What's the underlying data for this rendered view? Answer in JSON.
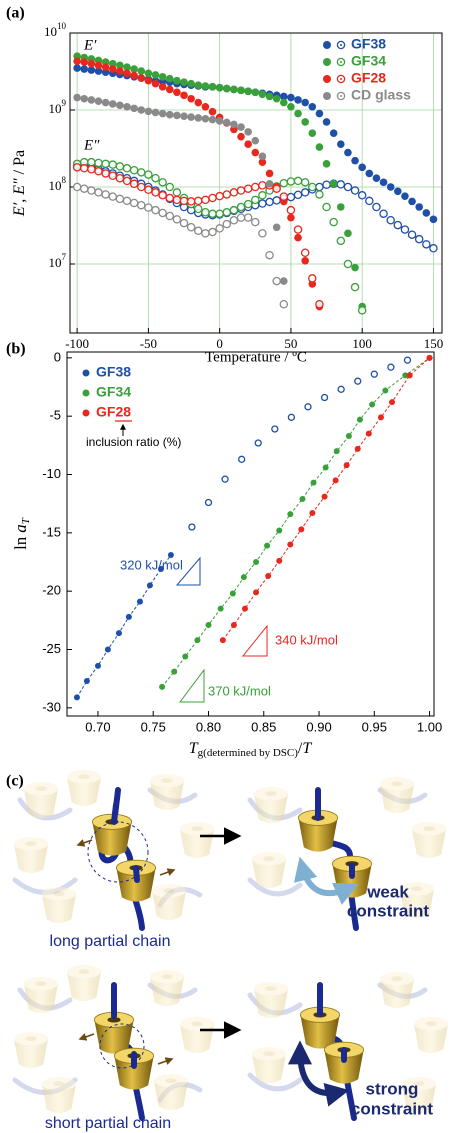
{
  "chart_data": [
    {
      "type": "scatter",
      "panel_label": "(a)",
      "yscale": "log",
      "grid": true,
      "legend": "upper right",
      "x_label": "Temperature / ºC",
      "y_label": [
        "E′, E″",
        "/ Pa"
      ],
      "annotations": [
        "E′",
        "E″"
      ],
      "xlim": [
        -105,
        156
      ],
      "xticks": [
        -100,
        -50,
        0,
        50,
        100,
        150
      ],
      "ylim": [
        1270000,
        10000000000
      ],
      "yticks": [
        {
          "value": 10000000,
          "label": "10",
          "exponent": "7"
        },
        {
          "value": 100000000,
          "label": "10",
          "exponent": "8"
        },
        {
          "value": 1000000000,
          "label": "10",
          "exponent": "9"
        },
        {
          "value": 10000000000,
          "label": "10",
          "exponent": "10"
        }
      ],
      "series": [
        {
          "name": "GF38",
          "color": "#1f4fa8",
          "x": [
            -100,
            -95,
            -90,
            -85,
            -80,
            -75,
            -70,
            -65,
            -60,
            -55,
            -50,
            -45,
            -40,
            -35,
            -30,
            -25,
            -20,
            -15,
            -10,
            -5,
            0,
            5,
            10,
            15,
            20,
            25,
            30,
            35,
            40,
            45,
            50,
            55,
            60,
            65,
            70,
            75,
            80,
            85,
            90,
            95,
            100,
            105,
            110,
            115,
            120,
            125,
            130,
            135,
            140,
            145,
            150
          ],
          "storage": [
            3500000000.0,
            3400000000.0,
            3300000000.0,
            3200000000.0,
            3100000000.0,
            3000000000.0,
            2900000000.0,
            2800000000.0,
            2700000000.0,
            2600000000.0,
            2500000000.0,
            2400000000.0,
            2350000000.0,
            2300000000.0,
            2200000000.0,
            2150000000.0,
            2100000000.0,
            2050000000.0,
            2000000000.0,
            2000000000.0,
            1950000000.0,
            1900000000.0,
            1850000000.0,
            1800000000.0,
            1750000000.0,
            1700000000.0,
            1650000000.0,
            1600000000.0,
            1550000000.0,
            1500000000.0,
            1450000000.0,
            1350000000.0,
            1250000000.0,
            1100000000.0,
            900000000.0,
            700000000.0,
            500000000.0,
            360000000.0,
            280000000.0,
            220000000.0,
            180000000.0,
            150000000.0,
            130000000.0,
            115000000.0,
            100000000.0,
            88000000.0,
            76000000.0,
            65000000.0,
            55000000.0,
            46000000.0,
            38000000.0
          ],
          "loss": [
            190000000.0,
            185000000.0,
            180000000.0,
            170000000.0,
            160000000.0,
            150000000.0,
            140000000.0,
            130000000.0,
            120000000.0,
            110000000.0,
            100000000.0,
            90000000.0,
            80000000.0,
            70000000.0,
            62000000.0,
            55000000.0,
            50000000.0,
            46000000.0,
            44000000.0,
            43000000.0,
            44000000.0,
            46000000.0,
            49000000.0,
            52000000.0,
            55000000.0,
            58000000.0,
            61000000.0,
            64000000.0,
            67000000.0,
            70000000.0,
            74000000.0,
            79000000.0,
            85000000.0,
            93000000.0,
            100000000.0,
            107000000.0,
            110000000.0,
            108000000.0,
            100000000.0,
            90000000.0,
            78000000.0,
            66000000.0,
            55000000.0,
            45000000.0,
            37000000.0,
            32000000.0,
            28000000.0,
            24000000.0,
            21000000.0,
            18000000.0,
            16000000.0
          ]
        },
        {
          "name": "GF34",
          "color": "#3aa03a",
          "x": [
            -100,
            -95,
            -90,
            -85,
            -80,
            -75,
            -70,
            -65,
            -60,
            -55,
            -50,
            -45,
            -40,
            -35,
            -30,
            -25,
            -20,
            -15,
            -10,
            -5,
            0,
            5,
            10,
            15,
            20,
            25,
            30,
            35,
            40,
            45,
            50,
            55,
            60,
            65,
            70,
            75,
            80,
            85,
            90,
            95,
            100
          ],
          "storage": [
            5000000000.0,
            4800000000.0,
            4600000000.0,
            4400000000.0,
            4200000000.0,
            4000000000.0,
            3800000000.0,
            3600000000.0,
            3400000000.0,
            3200000000.0,
            3000000000.0,
            2850000000.0,
            2700000000.0,
            2550000000.0,
            2400000000.0,
            2300000000.0,
            2200000000.0,
            2100000000.0,
            2050000000.0,
            2000000000.0,
            1950000000.0,
            1900000000.0,
            1850000000.0,
            1800000000.0,
            1750000000.0,
            1700000000.0,
            1600000000.0,
            1500000000.0,
            1400000000.0,
            1250000000.0,
            1100000000.0,
            900000000.0,
            700000000.0,
            500000000.0,
            330000000.0,
            200000000.0,
            110000000.0,
            55000000.0,
            25000000.0,
            9000000.0,
            2800000.0
          ],
          "loss": [
            200000000.0,
            210000000.0,
            210000000.0,
            205000000.0,
            200000000.0,
            195000000.0,
            185000000.0,
            175000000.0,
            165000000.0,
            155000000.0,
            145000000.0,
            130000000.0,
            115000000.0,
            100000000.0,
            85000000.0,
            72000000.0,
            60000000.0,
            52000000.0,
            47000000.0,
            45000000.0,
            45000000.0,
            47000000.0,
            50000000.0,
            55000000.0,
            60000000.0,
            68000000.0,
            78000000.0,
            90000000.0,
            102000000.0,
            112000000.0,
            118000000.0,
            120000000.0,
            115000000.0,
            100000000.0,
            80000000.0,
            55000000.0,
            35000000.0,
            20000000.0,
            10000000.0,
            5000000.0,
            2500000.0
          ]
        },
        {
          "name": "GF28",
          "color": "#e8281e",
          "x": [
            -100,
            -95,
            -90,
            -85,
            -80,
            -75,
            -70,
            -65,
            -60,
            -55,
            -50,
            -45,
            -40,
            -35,
            -30,
            -25,
            -20,
            -15,
            -10,
            -5,
            0,
            5,
            10,
            15,
            20,
            25,
            30,
            35,
            40,
            45,
            50,
            55,
            60,
            65,
            70
          ],
          "storage": [
            4300000000.0,
            4200000000.0,
            4000000000.0,
            3800000000.0,
            3600000000.0,
            3400000000.0,
            3200000000.0,
            3000000000.0,
            2800000000.0,
            2600000000.0,
            2400000000.0,
            2200000000.0,
            2000000000.0,
            1850000000.0,
            1700000000.0,
            1550000000.0,
            1400000000.0,
            1250000000.0,
            1100000000.0,
            950000000.0,
            800000000.0,
            680000000.0,
            560000000.0,
            450000000.0,
            360000000.0,
            280000000.0,
            210000000.0,
            150000000.0,
            100000000.0,
            65000000.0,
            40000000.0,
            22000000.0,
            11000000.0,
            5500000.0,
            2800000.0
          ],
          "loss": [
            180000000.0,
            175000000.0,
            170000000.0,
            160000000.0,
            150000000.0,
            140000000.0,
            130000000.0,
            120000000.0,
            110000000.0,
            100000000.0,
            92000000.0,
            85000000.0,
            78000000.0,
            72000000.0,
            68000000.0,
            66000000.0,
            65000000.0,
            66000000.0,
            68000000.0,
            72000000.0,
            76000000.0,
            80000000.0,
            85000000.0,
            90000000.0,
            95000000.0,
            100000000.0,
            105000000.0,
            105000000.0,
            95000000.0,
            75000000.0,
            50000000.0,
            28000000.0,
            14000000.0,
            6500000.0,
            3000000.0
          ]
        },
        {
          "name": "CD glass",
          "color": "#8a8a8a",
          "x": [
            -100,
            -95,
            -90,
            -85,
            -80,
            -75,
            -70,
            -65,
            -60,
            -55,
            -50,
            -45,
            -40,
            -35,
            -30,
            -25,
            -20,
            -15,
            -10,
            -5,
            0,
            5,
            10,
            15,
            20,
            25,
            30,
            35,
            40,
            45
          ],
          "storage": [
            1450000000.0,
            1400000000.0,
            1350000000.0,
            1300000000.0,
            1250000000.0,
            1200000000.0,
            1150000000.0,
            1100000000.0,
            1050000000.0,
            1000000000.0,
            960000000.0,
            930000000.0,
            900000000.0,
            870000000.0,
            850000000.0,
            830000000.0,
            810000000.0,
            790000000.0,
            770000000.0,
            750000000.0,
            720000000.0,
            690000000.0,
            650000000.0,
            600000000.0,
            520000000.0,
            400000000.0,
            250000000.0,
            110000000.0,
            30000000.0,
            6000000.0
          ],
          "loss": [
            100000000.0,
            95000000.0,
            90000000.0,
            85000000.0,
            80000000.0,
            75000000.0,
            70000000.0,
            66000000.0,
            62000000.0,
            58000000.0,
            54000000.0,
            50000000.0,
            46000000.0,
            42000000.0,
            38000000.0,
            34000000.0,
            30000000.0,
            27000000.0,
            25000000.0,
            26000000.0,
            29000000.0,
            33000000.0,
            37000000.0,
            40000000.0,
            40000000.0,
            35000000.0,
            25000000.0,
            13000000.0,
            6000000.0,
            3000000.0
          ]
        }
      ]
    },
    {
      "type": "scatter",
      "panel_label": "(b)",
      "grid": false,
      "legend": "upper left",
      "fit_lines": true,
      "x_label": [
        "T",
        "g(determined by DSC)",
        "/",
        "T"
      ],
      "y_label": [
        "ln",
        "a",
        "T"
      ],
      "annotations": [
        "inclusion ratio (%)",
        "320 kJ/mol",
        "370 kJ/mol",
        "340 kJ/mol"
      ],
      "xlim": [
        0.672,
        1.004
      ],
      "xticks": [
        {
          "value": 0.7,
          "label": "0.70"
        },
        0.75,
        {
          "value": 0.8,
          "label": "0.80"
        },
        0.85,
        {
          "value": 0.9,
          "label": "0.90"
        },
        0.95,
        {
          "value": 1.0,
          "label": "1.00"
        }
      ],
      "ylim": [
        -30.7,
        0.5
      ],
      "yticks": [
        0,
        -5,
        -10,
        -15,
        -20,
        -25,
        -30
      ],
      "series": [
        {
          "name": "GF38",
          "color": "#1f4fa8",
          "x": [
            0.681,
            0.69,
            0.7,
            0.709,
            0.719,
            0.728,
            0.738,
            0.747,
            0.757,
            0.766
          ],
          "values": [
            -29.1,
            -27.7,
            -26.4,
            -25.0,
            -23.6,
            -22.2,
            -20.9,
            -19.5,
            -18.1,
            -16.9
          ],
          "open_x": [
            0.785,
            0.8,
            0.815,
            0.83,
            0.845,
            0.86,
            0.875,
            0.89,
            0.905,
            0.92,
            0.935,
            0.95,
            0.965,
            0.98
          ],
          "open_values": [
            -14.5,
            -12.4,
            -10.4,
            -8.7,
            -7.3,
            -6.1,
            -5.1,
            -4.2,
            -3.4,
            -2.7,
            -2.0,
            -1.4,
            -0.8,
            -0.2
          ]
        },
        {
          "name": "GF34",
          "color": "#3aa03a",
          "x": [
            0.758,
            0.769,
            0.779,
            0.79,
            0.8,
            0.811,
            0.822,
            0.832,
            0.843,
            0.853,
            0.864,
            0.874,
            0.885,
            0.895,
            0.906,
            0.916,
            0.927,
            0.937,
            0.948,
            0.96,
            0.978,
            1.0
          ],
          "values": [
            -28.2,
            -26.9,
            -25.6,
            -24.2,
            -22.9,
            -21.5,
            -20.2,
            -18.8,
            -17.5,
            -16.1,
            -14.8,
            -13.4,
            -12.1,
            -10.7,
            -9.4,
            -8.0,
            -6.7,
            -5.3,
            -4.0,
            -2.8,
            -1.5,
            0
          ]
        },
        {
          "name": "GF28",
          "color": "#e8281e",
          "x": [
            0.813,
            0.823,
            0.833,
            0.843,
            0.854,
            0.864,
            0.874,
            0.884,
            0.894,
            0.905,
            0.915,
            0.925,
            0.935,
            0.945,
            0.956,
            0.966,
            0.982,
            1.0
          ],
          "values": [
            -24.2,
            -22.9,
            -21.5,
            -20.1,
            -18.7,
            -17.4,
            -16.0,
            -14.7,
            -13.3,
            -11.9,
            -10.5,
            -9.2,
            -7.8,
            -6.5,
            -5.1,
            -3.8,
            -1.5,
            0
          ]
        }
      ]
    }
  ],
  "diagram": {
    "panel_label": "(c)",
    "top": {
      "caption": "long partial chain",
      "effect": [
        "weak",
        "constraint"
      ]
    },
    "bottom": {
      "caption": "short partial chain",
      "effect": [
        "strong",
        "constraint"
      ]
    }
  }
}
